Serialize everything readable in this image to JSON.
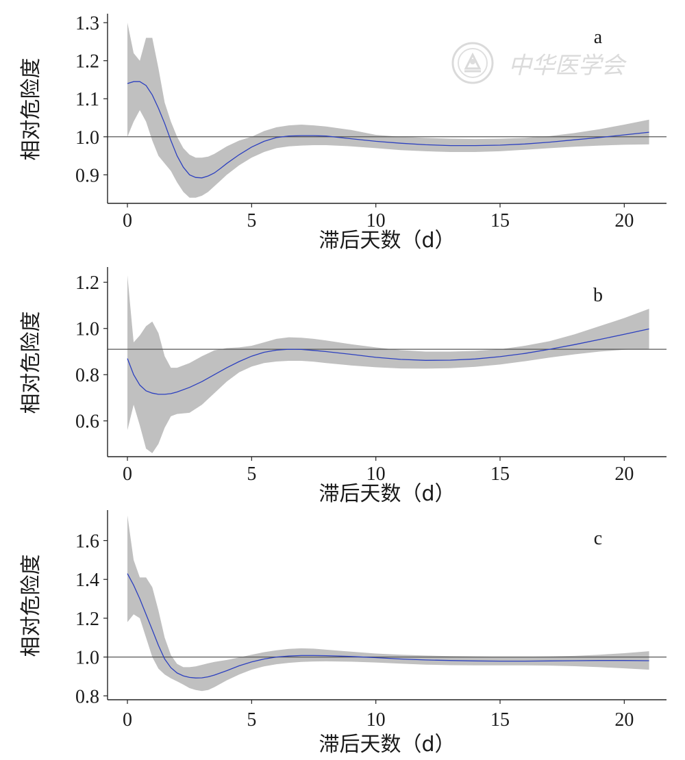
{
  "watermark": {
    "text": "中华医学会",
    "icon": "society-seal-icon"
  },
  "chart_data": [
    {
      "type": "line",
      "panel_label": "a",
      "xlabel": "滞后天数（d）",
      "ylabel": "相对危险度",
      "xlim": [
        -0.8,
        21.7
      ],
      "ylim": [
        0.825,
        1.32
      ],
      "xticks": [
        0,
        5,
        10,
        15,
        20
      ],
      "xtick_labels": [
        "0",
        "5",
        "10",
        "15",
        "20"
      ],
      "yticks": [
        0.9,
        1.0,
        1.1,
        1.2,
        1.3
      ],
      "ytick_labels": [
        "0.9",
        "1.0",
        "1.1",
        "1.2",
        "1.3"
      ],
      "reference_line": 1.0,
      "grid": false,
      "line_color": "#2b3fbf",
      "band_color": "#c0c0c0",
      "series": [
        {
          "x": [
            0,
            0.25,
            0.5,
            0.75,
            1,
            1.25,
            1.5,
            1.75,
            2,
            2.25,
            2.5,
            2.75,
            3,
            3.25,
            3.5,
            3.75,
            4,
            4.5,
            5,
            5.5,
            6,
            6.5,
            7,
            7.5,
            8,
            9,
            10,
            11,
            12,
            13,
            14,
            15,
            16,
            17,
            18,
            19,
            20,
            21
          ],
          "y": [
            1.14,
            1.145,
            1.145,
            1.135,
            1.11,
            1.075,
            1.035,
            0.99,
            0.95,
            0.92,
            0.9,
            0.893,
            0.892,
            0.897,
            0.905,
            0.917,
            0.93,
            0.953,
            0.973,
            0.988,
            0.998,
            1.002,
            1.003,
            1.003,
            1.002,
            0.995,
            0.988,
            0.983,
            0.979,
            0.977,
            0.977,
            0.978,
            0.981,
            0.986,
            0.992,
            0.998,
            1.005,
            1.012
          ],
          "lower": [
            1.0,
            1.04,
            1.07,
            1.04,
            0.99,
            0.95,
            0.93,
            0.91,
            0.88,
            0.855,
            0.84,
            0.84,
            0.845,
            0.855,
            0.87,
            0.885,
            0.9,
            0.925,
            0.945,
            0.96,
            0.97,
            0.975,
            0.977,
            0.978,
            0.978,
            0.975,
            0.97,
            0.965,
            0.962,
            0.96,
            0.96,
            0.962,
            0.966,
            0.97,
            0.974,
            0.977,
            0.979,
            0.98
          ],
          "upper": [
            1.3,
            1.22,
            1.2,
            1.26,
            1.26,
            1.18,
            1.09,
            1.04,
            1.0,
            0.97,
            0.953,
            0.945,
            0.945,
            0.948,
            0.955,
            0.965,
            0.975,
            0.99,
            1.0,
            1.015,
            1.025,
            1.03,
            1.032,
            1.03,
            1.027,
            1.018,
            1.005,
            1.0,
            0.997,
            0.995,
            0.994,
            0.995,
            0.997,
            1.002,
            1.01,
            1.02,
            1.032,
            1.045
          ]
        }
      ]
    },
    {
      "type": "line",
      "panel_label": "b",
      "xlabel": "滞后天数（d）",
      "ylabel": "相对危险度",
      "xlim": [
        -0.8,
        21.7
      ],
      "ylim": [
        0.445,
        1.26
      ],
      "xticks": [
        0,
        5,
        10,
        15,
        20
      ],
      "xtick_labels": [
        "0",
        "5",
        "10",
        "15",
        "20"
      ],
      "yticks": [
        0.6,
        0.8,
        1.0,
        1.2
      ],
      "ytick_labels": [
        "0.6",
        "0.8",
        "1.0",
        "1.2"
      ],
      "reference_line": 0.91,
      "grid": false,
      "line_color": "#2b3fbf",
      "band_color": "#c0c0c0",
      "series": [
        {
          "x": [
            0,
            0.25,
            0.5,
            0.75,
            1,
            1.25,
            1.5,
            1.75,
            2,
            2.5,
            3,
            3.5,
            4,
            4.5,
            5,
            5.5,
            6,
            6.5,
            7,
            7.5,
            8,
            9,
            10,
            11,
            12,
            13,
            14,
            15,
            16,
            17,
            18,
            19,
            20,
            21
          ],
          "y": [
            0.87,
            0.8,
            0.755,
            0.73,
            0.72,
            0.715,
            0.715,
            0.718,
            0.725,
            0.745,
            0.77,
            0.8,
            0.83,
            0.857,
            0.88,
            0.897,
            0.906,
            0.91,
            0.909,
            0.905,
            0.9,
            0.888,
            0.875,
            0.866,
            0.862,
            0.863,
            0.868,
            0.878,
            0.892,
            0.91,
            0.93,
            0.952,
            0.975,
            0.998
          ],
          "lower": [
            0.56,
            0.67,
            0.58,
            0.48,
            0.46,
            0.5,
            0.57,
            0.62,
            0.63,
            0.635,
            0.67,
            0.72,
            0.77,
            0.81,
            0.835,
            0.85,
            0.857,
            0.86,
            0.86,
            0.856,
            0.85,
            0.84,
            0.832,
            0.827,
            0.826,
            0.828,
            0.834,
            0.844,
            0.858,
            0.874,
            0.888,
            0.9,
            0.908,
            0.912
          ],
          "upper": [
            1.23,
            0.94,
            0.97,
            1.01,
            1.03,
            0.98,
            0.88,
            0.83,
            0.83,
            0.85,
            0.88,
            0.905,
            0.915,
            0.918,
            0.925,
            0.94,
            0.955,
            0.962,
            0.96,
            0.955,
            0.948,
            0.932,
            0.918,
            0.906,
            0.9,
            0.9,
            0.903,
            0.91,
            0.925,
            0.945,
            0.975,
            1.01,
            1.045,
            1.085
          ]
        }
      ]
    },
    {
      "type": "line",
      "panel_label": "c",
      "xlabel": "滞后天数（d）",
      "ylabel": "相对危险度",
      "xlim": [
        -0.8,
        21.7
      ],
      "ylim": [
        0.78,
        1.75
      ],
      "xticks": [
        0,
        5,
        10,
        15,
        20
      ],
      "xtick_labels": [
        "0",
        "5",
        "10",
        "15",
        "20"
      ],
      "yticks": [
        0.8,
        1.0,
        1.2,
        1.4,
        1.6
      ],
      "ytick_labels": [
        "0.8",
        "1.0",
        "1.2",
        "1.4",
        "1.6"
      ],
      "reference_line": 1.0,
      "grid": false,
      "line_color": "#2b3fbf",
      "band_color": "#c0c0c0",
      "series": [
        {
          "x": [
            0,
            0.25,
            0.5,
            0.75,
            1,
            1.25,
            1.5,
            1.75,
            2,
            2.25,
            2.5,
            2.75,
            3,
            3.25,
            3.5,
            4,
            4.5,
            5,
            5.5,
            6,
            6.5,
            7,
            7.5,
            8,
            9,
            10,
            11,
            12,
            13,
            14,
            15,
            16,
            17,
            18,
            19,
            20,
            21
          ],
          "y": [
            1.43,
            1.37,
            1.3,
            1.22,
            1.14,
            1.06,
            0.99,
            0.945,
            0.918,
            0.903,
            0.895,
            0.892,
            0.893,
            0.898,
            0.907,
            0.93,
            0.955,
            0.975,
            0.99,
            1.0,
            1.005,
            1.008,
            1.008,
            1.007,
            1.003,
            0.997,
            0.99,
            0.985,
            0.982,
            0.98,
            0.979,
            0.979,
            0.98,
            0.981,
            0.982,
            0.982,
            0.981
          ],
          "lower": [
            1.18,
            1.22,
            1.2,
            1.1,
            1.0,
            0.94,
            0.91,
            0.89,
            0.875,
            0.858,
            0.84,
            0.83,
            0.825,
            0.83,
            0.845,
            0.88,
            0.91,
            0.935,
            0.952,
            0.963,
            0.97,
            0.975,
            0.977,
            0.978,
            0.976,
            0.972,
            0.966,
            0.961,
            0.958,
            0.957,
            0.957,
            0.957,
            0.956,
            0.953,
            0.948,
            0.942,
            0.935
          ],
          "upper": [
            1.73,
            1.5,
            1.41,
            1.41,
            1.36,
            1.24,
            1.1,
            1.01,
            0.965,
            0.948,
            0.948,
            0.952,
            0.96,
            0.968,
            0.975,
            0.985,
            0.998,
            1.012,
            1.025,
            1.035,
            1.042,
            1.045,
            1.043,
            1.038,
            1.028,
            1.018,
            1.012,
            1.008,
            1.005,
            1.003,
            1.002,
            1.002,
            1.003,
            1.006,
            1.012,
            1.02,
            1.03
          ]
        }
      ]
    }
  ]
}
